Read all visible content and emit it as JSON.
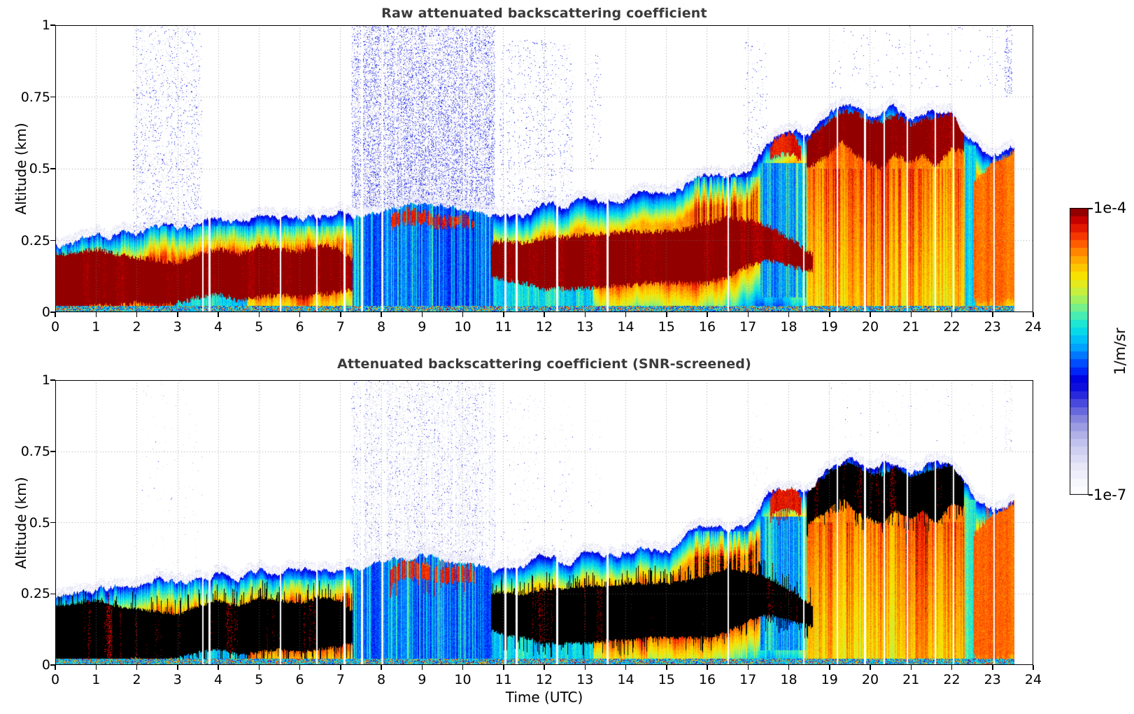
{
  "panel1": {
    "title": "Raw attenuated backscattering coefficient"
  },
  "panel2": {
    "title": "Attenuated backscattering coefficient (SNR-screened)"
  },
  "axes": {
    "xlabel": "Time (UTC)",
    "ylabel": "Altitude (km)",
    "x_tick_labels": [
      "0",
      "1",
      "2",
      "3",
      "4",
      "5",
      "6",
      "7",
      "8",
      "9",
      "10",
      "11",
      "12",
      "13",
      "14",
      "15",
      "16",
      "17",
      "18",
      "19",
      "20",
      "21",
      "22",
      "23",
      "24"
    ],
    "y_tick_labels": [
      "0",
      "0.25",
      "0.5",
      "0.75",
      "1"
    ],
    "y_tick_values": [
      0,
      0.25,
      0.5,
      0.75,
      1
    ],
    "grid_hours": [
      1,
      2,
      3,
      4,
      5,
      6,
      7,
      8,
      9,
      10,
      11,
      12,
      13,
      14,
      15,
      16,
      17,
      18,
      19,
      20,
      21,
      22,
      23
    ],
    "grid_altitudes": [
      0.25,
      0.5,
      0.75
    ]
  },
  "colorbar": {
    "max_label": "1e-4",
    "min_label": "1e-7",
    "unit_label": "1/m/sr",
    "steps": 36
  },
  "chart_data": {
    "type": "heatmap",
    "x_unit": "hours UTC",
    "y_unit": "km",
    "xlim": [
      0,
      24
    ],
    "ylim": [
      0,
      1
    ],
    "value_range": {
      "min": "1e-7",
      "max": "1e-4",
      "units": "1/m/sr",
      "scale": "log"
    },
    "data_end_hour": 23.55,
    "panels": [
      {
        "name": "raw",
        "title": "Raw attenuated backscattering coefficient",
        "screened": false,
        "strong_value_color": "#7a0000",
        "seed": 42
      },
      {
        "name": "snr_screened",
        "title": "Attenuated backscattering coefficient (SNR-screened)",
        "screened": true,
        "strong_value_color": "#000000",
        "seed": 1337
      }
    ],
    "hours": [
      0,
      0.5,
      1,
      1.5,
      2,
      2.5,
      3,
      3.5,
      4,
      4.5,
      5,
      5.5,
      6,
      6.5,
      7,
      7.5,
      8,
      8.5,
      9,
      9.5,
      10,
      10.5,
      11,
      11.5,
      12,
      12.5,
      13,
      13.5,
      14,
      14.5,
      15,
      15.5,
      16,
      16.5,
      17,
      17.5,
      18,
      18.5,
      19,
      19.5,
      20,
      20.5,
      21,
      21.5,
      22,
      22.5,
      23,
      23.5,
      24
    ],
    "signal_top_km": [
      0.235,
      0.25,
      0.26,
      0.27,
      0.27,
      0.3,
      0.285,
      0.3,
      0.32,
      0.31,
      0.33,
      0.32,
      0.33,
      0.34,
      0.35,
      0.33,
      0.35,
      0.37,
      0.38,
      0.37,
      0.355,
      0.345,
      0.33,
      0.335,
      0.39,
      0.355,
      0.41,
      0.375,
      0.4,
      0.42,
      0.4,
      0.45,
      0.49,
      0.47,
      0.49,
      0.6,
      0.63,
      0.62,
      0.69,
      0.73,
      0.68,
      0.71,
      0.67,
      0.7,
      0.71,
      0.6,
      0.54,
      0.57,
      0.57
    ],
    "bands": [
      {
        "name": "surface-aerosol-plume",
        "level": 1.0,
        "fade": 2.2,
        "patchy": false,
        "hours": [
          0,
          0.5,
          1,
          1.5,
          2,
          2.5,
          3,
          3.5,
          4,
          4.5,
          5,
          5.5,
          6,
          6.5,
          7,
          7.3
        ],
        "top": [
          0.2,
          0.21,
          0.22,
          0.2,
          0.19,
          0.18,
          0.17,
          0.2,
          0.22,
          0.2,
          0.23,
          0.22,
          0.21,
          0.23,
          0.22,
          0.18
        ],
        "bot": [
          0.01,
          0.01,
          0.02,
          0.02,
          0.03,
          0.02,
          0.03,
          0.05,
          0.06,
          0.04,
          0.05,
          0.06,
          0.05,
          0.06,
          0.07,
          0.08
        ]
      },
      {
        "name": "midday-aerosol-plume",
        "level": 1.0,
        "fade": 2.2,
        "patchy": false,
        "hours": [
          10.7,
          11,
          11.5,
          12,
          12.5,
          13,
          13.5,
          14,
          14.5,
          15,
          15.5,
          16,
          16.5,
          17,
          17.5,
          18,
          18.6
        ],
        "top": [
          0.24,
          0.25,
          0.24,
          0.26,
          0.26,
          0.27,
          0.27,
          0.28,
          0.28,
          0.28,
          0.29,
          0.31,
          0.33,
          0.32,
          0.3,
          0.26,
          0.2
        ],
        "bot": [
          0.13,
          0.11,
          0.1,
          0.08,
          0.08,
          0.08,
          0.09,
          0.09,
          0.1,
          0.1,
          0.1,
          0.1,
          0.12,
          0.16,
          0.18,
          0.16,
          0.14
        ]
      },
      {
        "name": "elevated-morning-layer",
        "level": 0.93,
        "fade": 0,
        "patchy": true,
        "hours": [
          8.2,
          8.6,
          9,
          9.5,
          10,
          10.3
        ],
        "top": [
          0.33,
          0.36,
          0.35,
          0.33,
          0.34,
          0.32
        ],
        "bot": [
          0.29,
          0.31,
          0.31,
          0.29,
          0.3,
          0.29
        ]
      },
      {
        "name": "evening-cloud-patch",
        "level": 0.94,
        "fade": 0,
        "patchy": false,
        "hours": [
          17.55,
          17.8,
          18.1,
          18.3
        ],
        "top": [
          0.58,
          0.62,
          0.62,
          0.58
        ],
        "bot": [
          0.53,
          0.55,
          0.55,
          0.53
        ]
      },
      {
        "name": "evening-cloud-deck",
        "level": 1.0,
        "fade": 0.18,
        "patchy": false,
        "hours": [
          18.45,
          19,
          19.3,
          19.6,
          20,
          20.3,
          20.6,
          21,
          21.3,
          21.6,
          22,
          22.3
        ],
        "top": [
          0.6,
          0.67,
          0.7,
          0.7,
          0.665,
          0.66,
          0.69,
          0.655,
          0.67,
          0.68,
          0.695,
          0.64
        ],
        "bot": [
          0.5,
          0.55,
          0.6,
          0.55,
          0.52,
          0.5,
          0.55,
          0.52,
          0.55,
          0.5,
          0.57,
          0.56
        ]
      },
      {
        "name": "late-plume",
        "level": 0.87,
        "fade": 1.5,
        "patchy": false,
        "hours": [
          22.55,
          23,
          23.55
        ],
        "top": [
          0.45,
          0.52,
          0.56
        ],
        "bot": [
          0.04,
          0.04,
          0.04
        ]
      }
    ],
    "weak_regions": [
      {
        "hours": [
          2.9,
          4.7
        ],
        "z": [
          0,
          0.1
        ],
        "level": 0.55,
        "col_streak": 0.05
      },
      {
        "hours": [
          7.3,
          10.75
        ],
        "z": [
          0,
          0.4
        ],
        "level": 0.46,
        "col_streak": 0.13
      },
      {
        "hours": [
          10.75,
          13.2
        ],
        "z": [
          0,
          0.14
        ],
        "level": 0.56,
        "col_streak": 0.05
      },
      {
        "hours": [
          17.3,
          18.45
        ],
        "z": [
          0.05,
          0.52
        ],
        "level": 0.5,
        "col_streak": 0.12
      },
      {
        "hours": [
          22.32,
          22.6
        ],
        "z": [
          0,
          0.58
        ],
        "level": 0.58,
        "col_streak": 0.05
      }
    ],
    "boost_regions": [
      {
        "hours": [
          15.7,
          17.25
        ],
        "z": [
          0.26,
          0.47
        ],
        "boost": 0.14,
        "colp": 0.5
      },
      {
        "hours": [
          18.6,
          22.3
        ],
        "z": [
          0.02,
          0.5
        ],
        "boost": 0.07,
        "colp": 0.35
      },
      {
        "hours": [
          0,
          7.3
        ],
        "z": [
          0.08,
          0.3
        ],
        "boost": 0.08,
        "colp": 0.5
      }
    ],
    "cloud_puffs": [
      {
        "h": 13.9,
        "z": 0.5,
        "w": 0.25,
        "ht": 0.045
      },
      {
        "h": 14.15,
        "z": 0.46,
        "w": 0.2,
        "ht": 0.04
      },
      {
        "h": 14.4,
        "z": 0.51,
        "w": 0.22,
        "ht": 0.045
      },
      {
        "h": 14.6,
        "z": 0.47,
        "w": 0.15,
        "ht": 0.035
      },
      {
        "h": 11.9,
        "z": 0.46,
        "w": 0.12,
        "ht": 0.03
      }
    ],
    "puff_level": 0.57,
    "noise_regions": [
      {
        "hours": [
          1.9,
          3.6
        ],
        "z": [
          0.28,
          1.0
        ],
        "density": 0.13,
        "blue_frac": 0.25,
        "screened_factor": 0.08
      },
      {
        "hours": [
          7.25,
          10.8
        ],
        "z": [
          0.36,
          1.0
        ],
        "density": 0.5,
        "blue_frac": 0.3,
        "screened_factor": 0.55
      },
      {
        "hours": [
          10.9,
          12.7
        ],
        "z": [
          0.36,
          0.95
        ],
        "density": 0.09,
        "blue_frac": 0.3,
        "screened_factor": 0.3
      },
      {
        "hours": [
          13.0,
          13.4
        ],
        "z": [
          0.5,
          0.9
        ],
        "density": 0.05,
        "blue_frac": 0.3,
        "screened_factor": 0.3
      },
      {
        "hours": [
          16.9,
          17.5
        ],
        "z": [
          0.55,
          0.95
        ],
        "density": 0.05,
        "blue_frac": 0.35,
        "screened_factor": 0.3
      },
      {
        "hours": [
          19.0,
          23.3
        ],
        "z": [
          0.78,
          1.0
        ],
        "density": 0.015,
        "blue_frac": 0.5,
        "screened_factor": 0.5
      },
      {
        "hours": [
          23.3,
          23.5
        ],
        "z": [
          0.75,
          1.0
        ],
        "density": 0.2,
        "blue_frac": 0.5,
        "screened_factor": 0.5
      }
    ],
    "gap_hours": [
      3.62,
      3.78,
      5.52,
      6.42,
      7.1,
      7.52,
      8.02,
      11.05,
      11.32,
      12.32,
      13.55,
      16.52,
      18.37,
      19.2,
      19.88,
      20.35,
      20.92,
      21.6,
      22.05,
      23.05
    ],
    "surface_stripe_top_km": 0.022,
    "colormap_stops": [
      [
        0.0,
        "#ffffff"
      ],
      [
        0.05,
        "#f4f4fc"
      ],
      [
        0.1,
        "#e6e6f8"
      ],
      [
        0.16,
        "#ccccf0"
      ],
      [
        0.22,
        "#aaaae6"
      ],
      [
        0.27,
        "#8080dd"
      ],
      [
        0.32,
        "#4848dd"
      ],
      [
        0.36,
        "#1818dd"
      ],
      [
        0.4,
        "#0000dd"
      ],
      [
        0.44,
        "#0030ff"
      ],
      [
        0.48,
        "#0070ff"
      ],
      [
        0.52,
        "#00a8ff"
      ],
      [
        0.56,
        "#00d4f0"
      ],
      [
        0.6,
        "#20e8d0"
      ],
      [
        0.64,
        "#60f0a0"
      ],
      [
        0.68,
        "#a0f060"
      ],
      [
        0.72,
        "#d8ee30"
      ],
      [
        0.76,
        "#f6e400"
      ],
      [
        0.8,
        "#ffc000"
      ],
      [
        0.84,
        "#ff9000"
      ],
      [
        0.88,
        "#ff5400"
      ],
      [
        0.92,
        "#ee2200"
      ],
      [
        0.96,
        "#c40000"
      ],
      [
        1.0,
        "#7a0000"
      ]
    ]
  }
}
